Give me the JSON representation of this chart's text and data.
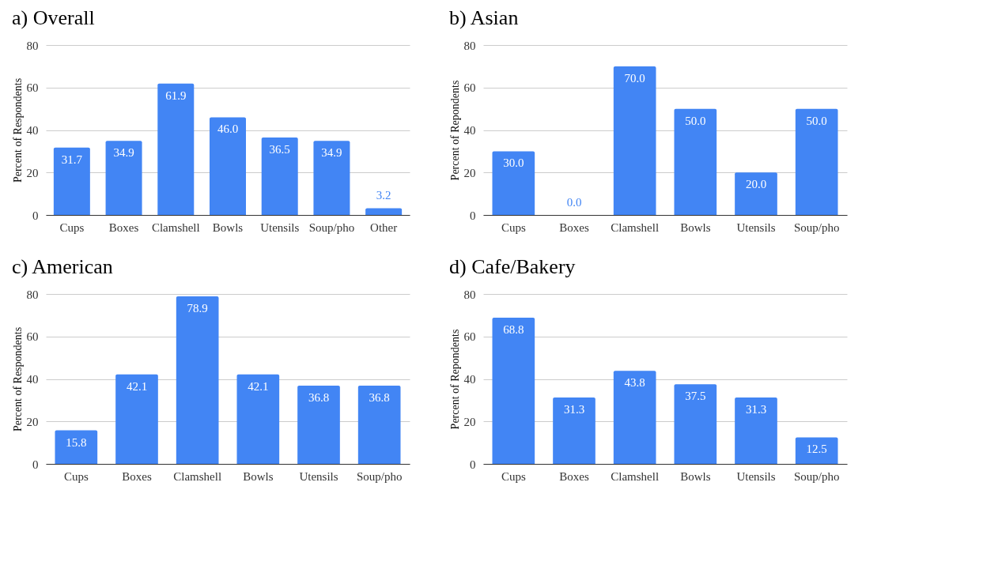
{
  "chart_data": [
    {
      "type": "bar",
      "title": "a) Overall",
      "ylabel": "Percent of Respondents",
      "categories": [
        "Cups",
        "Boxes",
        "Clamshell",
        "Bowls",
        "Utensils",
        "Soup/pho",
        "Other"
      ],
      "values": [
        31.7,
        34.9,
        61.9,
        46,
        36.5,
        34.9,
        3.2
      ],
      "value_labels": [
        "31.7",
        "34.9",
        "61.9",
        "46.0",
        "36.5",
        "34.9",
        "3.2"
      ],
      "color": "#4285f4",
      "ylim": [
        0,
        80
      ],
      "yticks": [
        0,
        20,
        40,
        60,
        80
      ],
      "grid": "y"
    },
    {
      "type": "bar",
      "title": "b) Asian",
      "ylabel": "Percent of Repondents",
      "categories": [
        "Cups",
        "Boxes",
        "Clamshell",
        "Bowls",
        "Utensils",
        "Soup/pho"
      ],
      "values": [
        30,
        0,
        70,
        50,
        20,
        50
      ],
      "value_labels": [
        "30.0",
        "0.0",
        "70.0",
        "50.0",
        "20.0",
        "50.0"
      ],
      "color": "#4285f4",
      "ylim": [
        0,
        80
      ],
      "yticks": [
        0,
        20,
        40,
        60,
        80
      ],
      "grid": "y"
    },
    {
      "type": "bar",
      "title": "c) American",
      "ylabel": "Percent of Respondents",
      "categories": [
        "Cups",
        "Boxes",
        "Clamshell",
        "Bowls",
        "Utensils",
        "Soup/pho"
      ],
      "values": [
        15.8,
        42.1,
        78.9,
        42.1,
        36.8,
        36.8
      ],
      "value_labels": [
        "15.8",
        "42.1",
        "78.9",
        "42.1",
        "36.8",
        "36.8"
      ],
      "color": "#4285f4",
      "ylim": [
        0,
        80
      ],
      "yticks": [
        0,
        20,
        40,
        60,
        80
      ],
      "grid": "y"
    },
    {
      "type": "bar",
      "title": "d) Cafe/Bakery",
      "ylabel": "Percent of Repondents",
      "categories": [
        "Cups",
        "Boxes",
        "Clamshell",
        "Bowls",
        "Utensils",
        "Soup/pho"
      ],
      "values": [
        68.8,
        31.3,
        43.8,
        37.5,
        31.3,
        12.5
      ],
      "value_labels": [
        "68.8",
        "31.3",
        "43.8",
        "37.5",
        "31.3",
        "12.5"
      ],
      "color": "#4285f4",
      "ylim": [
        0,
        80
      ],
      "yticks": [
        0,
        20,
        40,
        60,
        80
      ],
      "grid": "y"
    }
  ]
}
